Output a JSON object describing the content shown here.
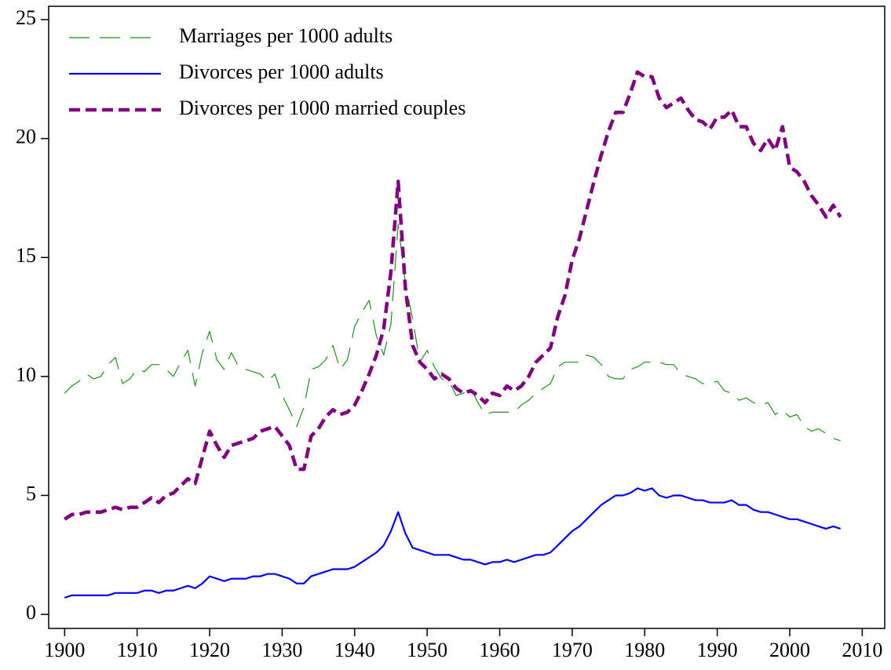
{
  "chart_data": {
    "type": "line",
    "x": [
      1900,
      1901,
      1902,
      1903,
      1904,
      1905,
      1906,
      1907,
      1908,
      1909,
      1910,
      1911,
      1912,
      1913,
      1914,
      1915,
      1916,
      1917,
      1918,
      1919,
      1920,
      1921,
      1922,
      1923,
      1924,
      1925,
      1926,
      1927,
      1928,
      1929,
      1930,
      1931,
      1932,
      1933,
      1934,
      1935,
      1936,
      1937,
      1938,
      1939,
      1940,
      1941,
      1942,
      1943,
      1944,
      1945,
      1946,
      1947,
      1948,
      1949,
      1950,
      1951,
      1952,
      1953,
      1954,
      1955,
      1956,
      1957,
      1958,
      1959,
      1960,
      1961,
      1962,
      1963,
      1964,
      1965,
      1966,
      1967,
      1968,
      1969,
      1970,
      1971,
      1972,
      1973,
      1974,
      1975,
      1976,
      1977,
      1978,
      1979,
      1980,
      1981,
      1982,
      1983,
      1984,
      1985,
      1986,
      1987,
      1988,
      1989,
      1990,
      1991,
      1992,
      1993,
      1994,
      1995,
      1996,
      1997,
      1998,
      1999,
      2000,
      2001,
      2002,
      2003,
      2004,
      2005,
      2006,
      2007
    ],
    "series": [
      {
        "name": "Marriages per 1000 adults",
        "color": "#228b22",
        "linestyle": "longdash",
        "linewidth": 1.2,
        "values": [
          9.3,
          9.6,
          9.8,
          10.1,
          9.9,
          10.0,
          10.5,
          10.8,
          9.7,
          9.9,
          10.3,
          10.2,
          10.5,
          10.5,
          10.3,
          10.0,
          10.6,
          11.1,
          9.6,
          11.0,
          11.9,
          10.7,
          10.3,
          11.0,
          10.4,
          10.3,
          10.2,
          10.1,
          9.8,
          10.1,
          9.2,
          8.6,
          7.9,
          8.7,
          10.3,
          10.4,
          10.7,
          11.3,
          10.3,
          10.7,
          12.1,
          12.7,
          13.2,
          11.7,
          10.9,
          12.2,
          16.4,
          13.9,
          12.4,
          10.6,
          11.1,
          10.4,
          9.9,
          9.8,
          9.2,
          9.3,
          9.5,
          8.9,
          8.4,
          8.5,
          8.5,
          8.5,
          8.5,
          8.8,
          9.0,
          9.3,
          9.5,
          9.7,
          10.4,
          10.6,
          10.6,
          10.6,
          10.9,
          10.8,
          10.5,
          10.0,
          9.9,
          9.9,
          10.3,
          10.4,
          10.6,
          10.6,
          10.6,
          10.5,
          10.5,
          10.1,
          10.0,
          9.9,
          9.7,
          9.7,
          9.8,
          9.4,
          9.3,
          9.0,
          9.1,
          8.9,
          8.8,
          8.9,
          8.4,
          8.6,
          8.3,
          8.4,
          7.9,
          7.7,
          7.8,
          7.6,
          7.4,
          7.3
        ]
      },
      {
        "name": "Divorces per 1000 adults",
        "color": "#0000ff",
        "linestyle": "solid",
        "linewidth": 2.2,
        "values": [
          0.7,
          0.8,
          0.8,
          0.8,
          0.8,
          0.8,
          0.8,
          0.9,
          0.9,
          0.9,
          0.9,
          1.0,
          1.0,
          0.9,
          1.0,
          1.0,
          1.1,
          1.2,
          1.1,
          1.3,
          1.6,
          1.5,
          1.4,
          1.5,
          1.5,
          1.5,
          1.6,
          1.6,
          1.7,
          1.7,
          1.6,
          1.5,
          1.3,
          1.3,
          1.6,
          1.7,
          1.8,
          1.9,
          1.9,
          1.9,
          2.0,
          2.2,
          2.4,
          2.6,
          2.9,
          3.5,
          4.3,
          3.4,
          2.8,
          2.7,
          2.6,
          2.5,
          2.5,
          2.5,
          2.4,
          2.3,
          2.3,
          2.2,
          2.1,
          2.2,
          2.2,
          2.3,
          2.2,
          2.3,
          2.4,
          2.5,
          2.5,
          2.6,
          2.9,
          3.2,
          3.5,
          3.7,
          4.0,
          4.3,
          4.6,
          4.8,
          5.0,
          5.0,
          5.1,
          5.3,
          5.2,
          5.3,
          5.0,
          4.9,
          5.0,
          5.0,
          4.9,
          4.8,
          4.8,
          4.7,
          4.7,
          4.7,
          4.8,
          4.6,
          4.6,
          4.4,
          4.3,
          4.3,
          4.2,
          4.1,
          4.0,
          4.0,
          3.9,
          3.8,
          3.7,
          3.6,
          3.7,
          3.6
        ]
      },
      {
        "name": "Divorces per 1000 married couples",
        "color": "#800080",
        "linestyle": "dash",
        "linewidth": 4.5,
        "values": [
          4.0,
          4.2,
          4.2,
          4.3,
          4.3,
          4.3,
          4.4,
          4.5,
          4.4,
          4.5,
          4.5,
          4.7,
          4.9,
          4.7,
          5.0,
          5.1,
          5.4,
          5.7,
          5.5,
          6.6,
          7.7,
          7.1,
          6.6,
          7.1,
          7.2,
          7.3,
          7.4,
          7.7,
          7.8,
          7.9,
          7.5,
          7.1,
          6.1,
          6.1,
          7.5,
          7.8,
          8.3,
          8.6,
          8.4,
          8.5,
          8.8,
          9.4,
          10.1,
          10.9,
          12.0,
          14.4,
          18.2,
          13.7,
          11.3,
          10.6,
          10.3,
          9.9,
          10.1,
          9.9,
          9.5,
          9.3,
          9.4,
          9.2,
          8.9,
          9.3,
          9.2,
          9.6,
          9.4,
          9.6,
          10.0,
          10.6,
          10.9,
          11.2,
          12.5,
          13.4,
          14.9,
          15.8,
          17.0,
          18.2,
          19.3,
          20.3,
          21.1,
          21.1,
          21.9,
          22.8,
          22.6,
          22.6,
          21.7,
          21.3,
          21.5,
          21.7,
          21.2,
          20.8,
          20.7,
          20.4,
          20.9,
          20.9,
          21.2,
          20.5,
          20.5,
          19.8,
          19.5,
          20.0,
          19.5,
          20.5,
          18.8,
          18.6,
          18.2,
          17.6,
          17.2,
          16.7,
          17.2,
          16.7
        ]
      }
    ],
    "xlim": [
      1897.8,
      2013.1
    ],
    "ylim": [
      -0.59,
      25.56
    ],
    "xticks": [
      1900,
      1910,
      1920,
      1930,
      1940,
      1950,
      1960,
      1970,
      1980,
      1990,
      2000,
      2010
    ],
    "yticks": [
      0,
      5,
      10,
      15,
      20,
      25
    ],
    "legend": "upper left",
    "grid": false
  }
}
